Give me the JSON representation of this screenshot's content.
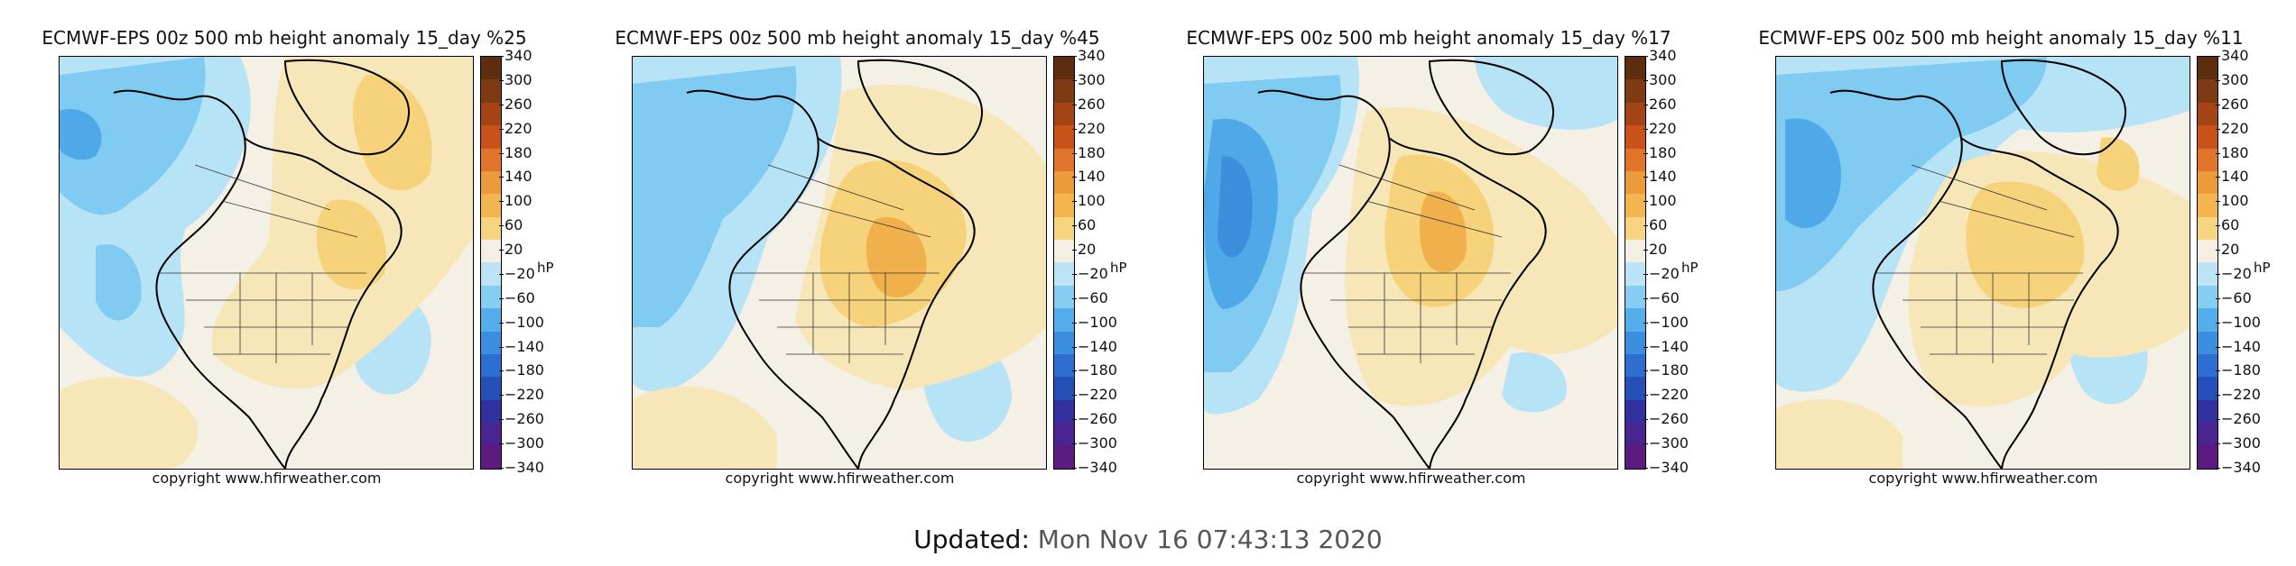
{
  "colors": {
    "neutral": "#f5f0e6",
    "warm_light": "#f7e6b8",
    "warm_mid": "#f6d27a",
    "warm_dark": "#f0b14c",
    "warm_deeper": "#e8963a",
    "cool_light": "#b7e3f7",
    "cool_mid": "#7fcbf2",
    "cool_dark": "#4fa8e8",
    "cool_deeper": "#3d8fdc"
  },
  "colorbar": {
    "unit": "hP",
    "ticks": [
      "340",
      "300",
      "260",
      "220",
      "180",
      "140",
      "100",
      "60",
      "20",
      "−20",
      "−60",
      "−100",
      "−140",
      "−180",
      "−220",
      "−260",
      "−300",
      "−340"
    ],
    "colors": [
      "#5c2d0e",
      "#7e3a12",
      "#a44414",
      "#c8521a",
      "#e0742a",
      "#ec9a3a",
      "#f5b54e",
      "#f7d480",
      "#f5efe3",
      "#bde4f6",
      "#86cdf3",
      "#54aeec",
      "#3b8ee0",
      "#2c6fd0",
      "#2450b8",
      "#32309e",
      "#4a2490",
      "#5d1a80"
    ]
  },
  "panels": [
    {
      "title": "ECMWF-EPS 00z 500 mb height anomaly 15_day %25",
      "copyright": "copyright www.hfirweather.com"
    },
    {
      "title": "ECMWF-EPS 00z 500 mb height anomaly 15_day %45",
      "copyright": "copyright www.hfirweather.com"
    },
    {
      "title": "ECMWF-EPS 00z 500 mb height anomaly 15_day %17",
      "copyright": "copyright www.hfirweather.com"
    },
    {
      "title": "ECMWF-EPS 00z 500 mb height anomaly 15_day %11",
      "copyright": "copyright www.hfirweather.com"
    }
  ],
  "footer": {
    "label": "Updated:",
    "value": "Mon Nov 16 07:43:13 2020"
  }
}
